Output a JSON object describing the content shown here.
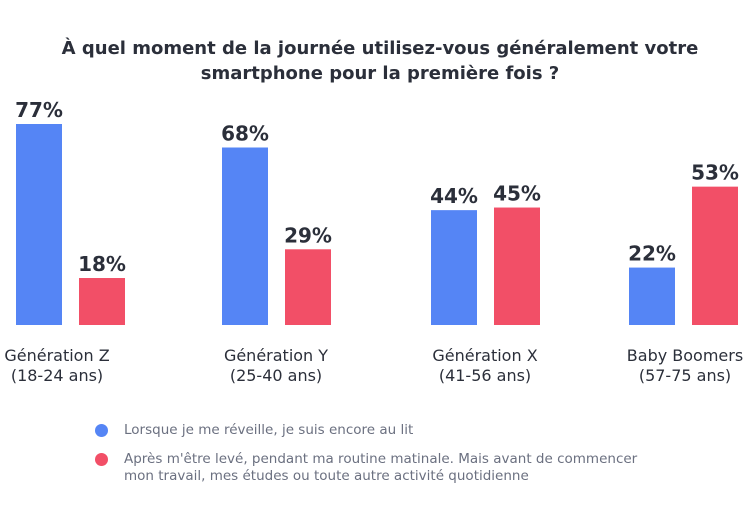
{
  "title": {
    "line1": "À quel moment de la journée utilisez-vous généralement votre",
    "line2": "smartphone pour la première fois ?"
  },
  "colors": {
    "blue": "#5585f5",
    "red": "#f24f67",
    "text": "#2b2f3a"
  },
  "chart_data": {
    "type": "bar",
    "title": "À quel moment de la journée utilisez-vous généralement votre smartphone pour la première fois ?",
    "categories": [
      [
        "Génération Z",
        "(18-24 ans)"
      ],
      [
        "Génération Y",
        "(25-40 ans)"
      ],
      [
        "Génération X",
        "(41-56 ans)"
      ],
      [
        "Baby Boomers",
        "(57-75 ans)"
      ]
    ],
    "series": [
      {
        "name": "Lorsque je me réveille, je suis encore au lit",
        "color": "#5585f5",
        "values": [
          77,
          68,
          44,
          22
        ]
      },
      {
        "name": "Après m'être levé, pendant ma routine matinale. Mais avant de commencer mon travail, mes études ou toute autre activité quotidienne",
        "color": "#f24f67",
        "values": [
          18,
          29,
          45,
          53
        ]
      }
    ],
    "unit": "%",
    "ylim": [
      0,
      77
    ],
    "grid": false,
    "legend_position": "bottom"
  },
  "legend": [
    {
      "line1": "Lorsque je me réveille, je suis encore au lit",
      "line2": ""
    },
    {
      "line1": "Après m'être levé, pendant ma routine matinale. Mais avant de commencer",
      "line2": "mon travail, mes études ou toute autre activité quotidienne"
    }
  ]
}
